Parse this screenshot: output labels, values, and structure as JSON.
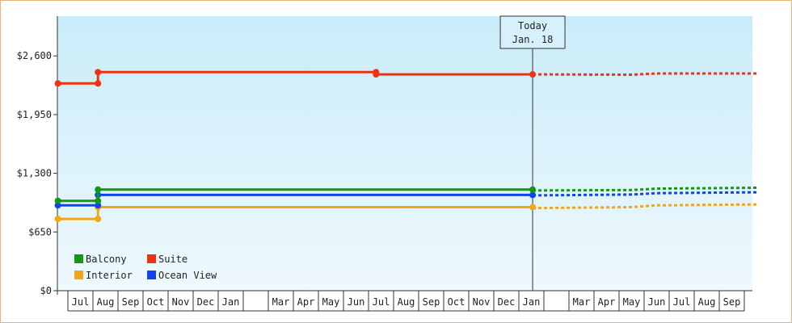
{
  "chart_data": {
    "type": "line",
    "title": "",
    "xlabel": "",
    "ylabel": "",
    "y_ticks": [
      "$0",
      "$650",
      "$1,300",
      "$1,950",
      "$2,600"
    ],
    "y_tick_values": [
      0,
      650,
      1300,
      1950,
      2600
    ],
    "ylim": [
      0,
      3040
    ],
    "x_month_labels": [
      "Jul",
      "Aug",
      "Sep",
      "Oct",
      "Nov",
      "Dec",
      "Jan",
      "",
      "Mar",
      "Apr",
      "May",
      "Jun",
      "Jul",
      "Aug",
      "Sep",
      "Oct",
      "Nov",
      "Dec",
      "Jan",
      "",
      "Mar",
      "Apr",
      "May",
      "Jun",
      "Jul",
      "Aug",
      "Sep"
    ],
    "today": {
      "line1": "Today",
      "line2": "Jan. 18",
      "month_index": 18.55
    },
    "grid": false,
    "legend_position": "bottom-left",
    "series": [
      {
        "name": "Balcony",
        "color": "#119911",
        "points": [
          [
            -0.4,
            995
          ],
          [
            1.2,
            995
          ],
          [
            1.2,
            1120
          ],
          [
            18.55,
            1120
          ]
        ],
        "markers": [
          [
            -0.4,
            995
          ],
          [
            1.2,
            995
          ],
          [
            1.2,
            1120
          ],
          [
            18.55,
            1120
          ]
        ],
        "forecast": [
          [
            18.55,
            1110
          ],
          [
            22.5,
            1115
          ],
          [
            23.5,
            1130
          ],
          [
            27.5,
            1140
          ]
        ]
      },
      {
        "name": "Suite",
        "color": "#ee3311",
        "points": [
          [
            -0.4,
            2295
          ],
          [
            1.2,
            2295
          ],
          [
            1.2,
            2420
          ],
          [
            12.3,
            2420
          ],
          [
            12.3,
            2395
          ],
          [
            18.55,
            2395
          ]
        ],
        "markers": [
          [
            -0.4,
            2295
          ],
          [
            1.2,
            2295
          ],
          [
            1.2,
            2420
          ],
          [
            12.3,
            2420
          ],
          [
            12.3,
            2395
          ],
          [
            18.55,
            2395
          ]
        ],
        "forecast": [
          [
            18.55,
            2395
          ],
          [
            22.5,
            2392
          ],
          [
            23.5,
            2405
          ],
          [
            27.5,
            2405
          ]
        ]
      },
      {
        "name": "Interior",
        "color": "#f2a516",
        "points": [
          [
            -0.4,
            795
          ],
          [
            1.2,
            795
          ],
          [
            1.2,
            925
          ],
          [
            18.55,
            925
          ]
        ],
        "markers": [
          [
            -0.4,
            795
          ],
          [
            1.2,
            795
          ],
          [
            1.2,
            925
          ],
          [
            18.55,
            925
          ]
        ],
        "forecast": [
          [
            18.55,
            915
          ],
          [
            22.5,
            925
          ],
          [
            23.5,
            945
          ],
          [
            27.5,
            955
          ]
        ]
      },
      {
        "name": "Ocean View",
        "color": "#1144ee",
        "points": [
          [
            -0.4,
            945
          ],
          [
            1.2,
            945
          ],
          [
            1.2,
            1060
          ],
          [
            18.55,
            1060
          ]
        ],
        "markers": [
          [
            -0.4,
            945
          ],
          [
            1.2,
            945
          ],
          [
            1.2,
            1060
          ],
          [
            18.55,
            1060
          ]
        ],
        "forecast": [
          [
            18.55,
            1055
          ],
          [
            22.5,
            1065
          ],
          [
            23.5,
            1080
          ],
          [
            27.5,
            1090
          ]
        ]
      }
    ]
  }
}
